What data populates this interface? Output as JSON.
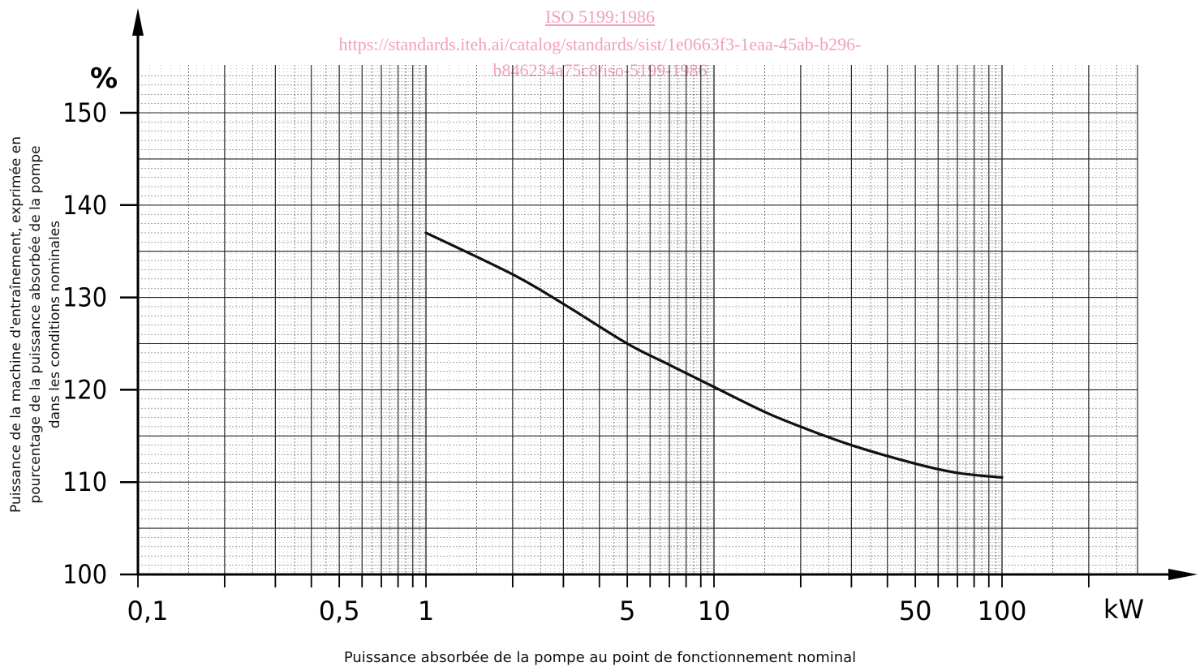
{
  "watermark": {
    "title": "ISO 5199:1986",
    "url_line1": "https://standards.iteh.ai/catalog/standards/sist/1e0663f3-1eaa-45ab-b296-",
    "url_line2": "b846234a75c8/iso-5199-1986",
    "color": "#f2a1b9"
  },
  "chart_data": {
    "type": "line",
    "xscale": "log",
    "xlim": [
      0.1,
      500
    ],
    "ylim": [
      100,
      155
    ],
    "grid": true,
    "yunit": "%",
    "xunit": "kW",
    "ylabel_lines": [
      "Puissance de la machine d'entraînement, exprimée en",
      "pourcentage de la puissance absorbée de la pompe",
      "dans les conditions nominales"
    ],
    "xlabel": "Puissance absorbée de la pompe au point de fonctionnement nominal",
    "xticks": [
      {
        "value": 0.1,
        "label": "0,1"
      },
      {
        "value": 0.5,
        "label": "0,5"
      },
      {
        "value": 1,
        "label": "1"
      },
      {
        "value": 5,
        "label": "5"
      },
      {
        "value": 10,
        "label": "10"
      },
      {
        "value": 50,
        "label": "50"
      },
      {
        "value": 100,
        "label": "100"
      }
    ],
    "yticks": [
      {
        "value": 100,
        "label": "100"
      },
      {
        "value": 110,
        "label": "110"
      },
      {
        "value": 120,
        "label": "120"
      },
      {
        "value": 130,
        "label": "130"
      },
      {
        "value": 140,
        "label": "140"
      },
      {
        "value": 150,
        "label": "150"
      }
    ],
    "series": [
      {
        "x": [
          1,
          2,
          3,
          5,
          7,
          10,
          15,
          20,
          30,
          50,
          70,
          100
        ],
        "y": [
          137,
          132.5,
          129.3,
          125,
          122.7,
          120.3,
          117.6,
          116,
          114,
          112,
          111,
          110.5
        ],
        "color": "#111111"
      }
    ]
  }
}
